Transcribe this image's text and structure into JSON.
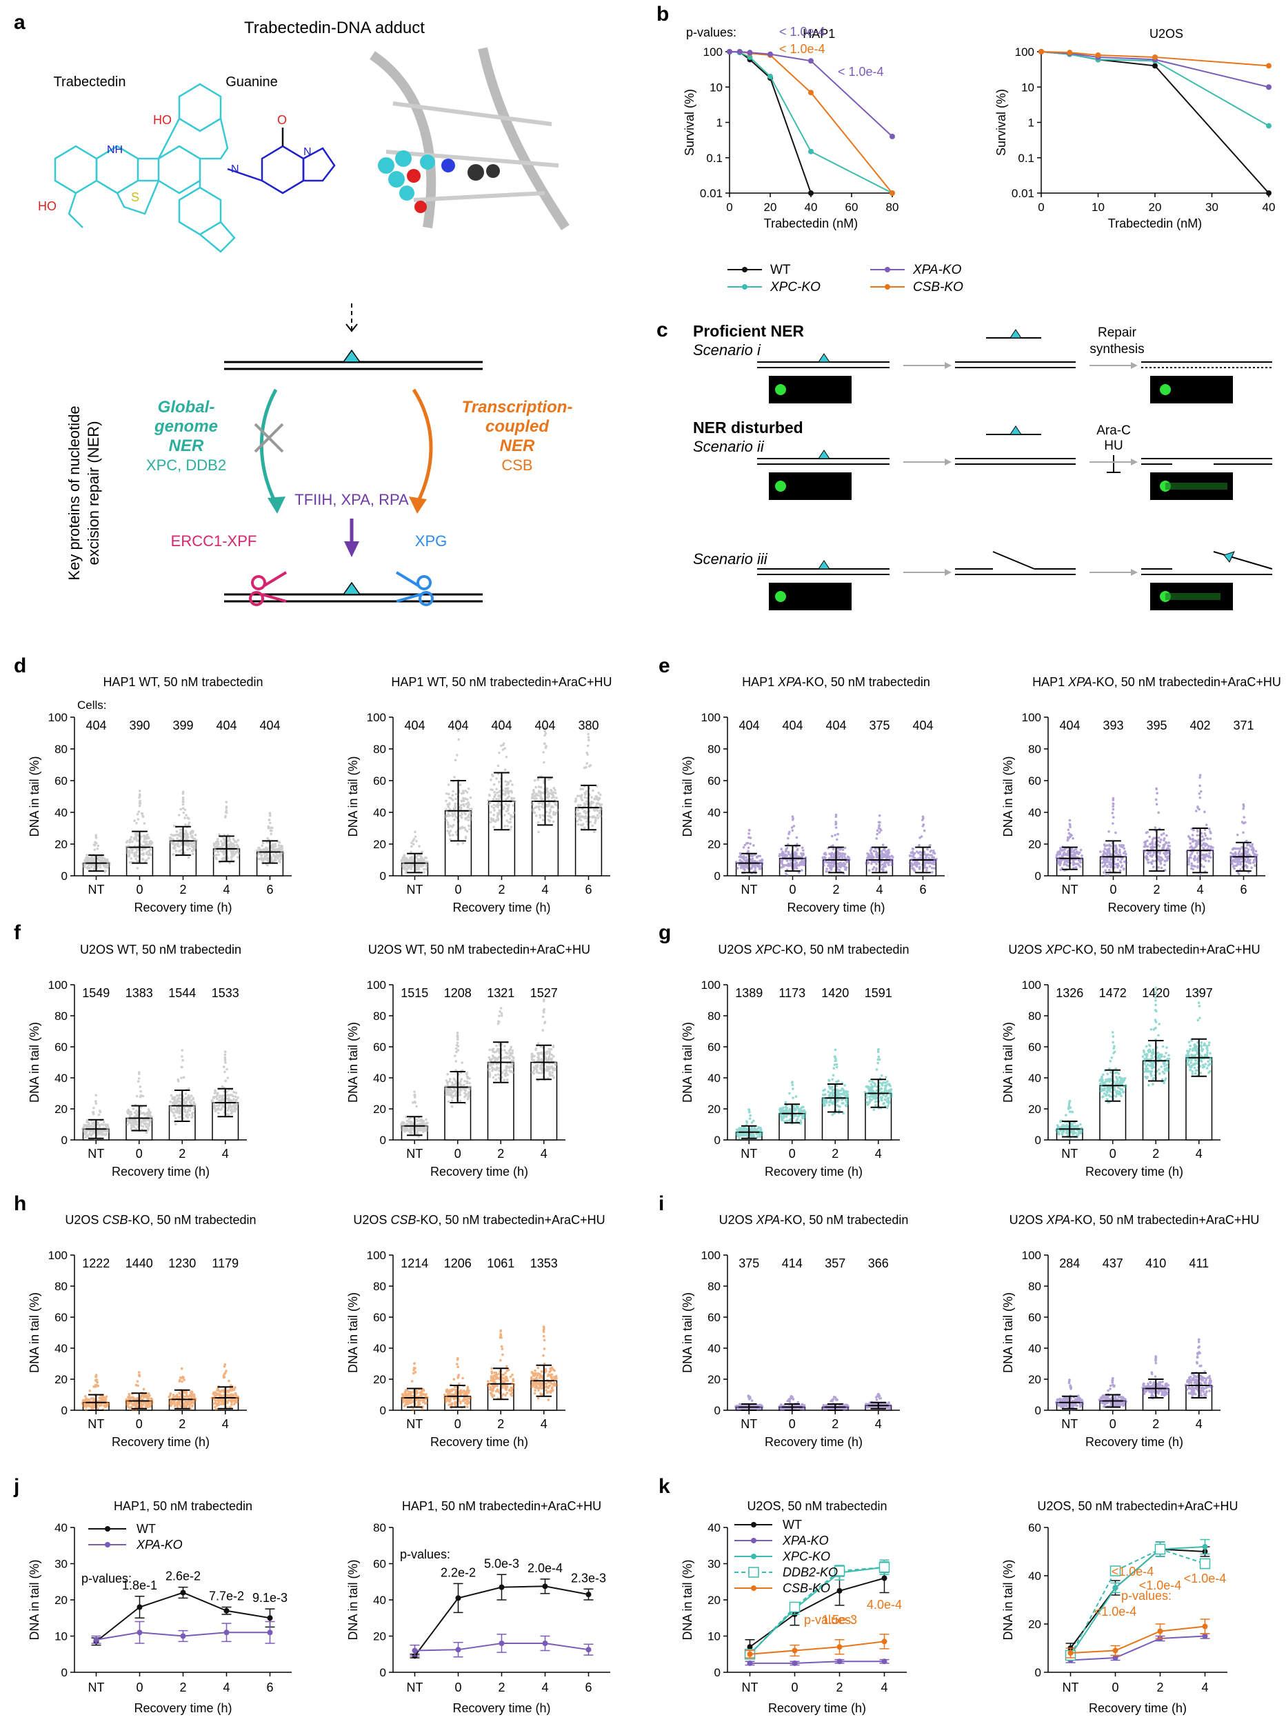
{
  "figure_label": "Figure",
  "colors": {
    "wt": "#111111",
    "xpa": "#7A5CB8",
    "xpc": "#3BBBAD",
    "csb": "#E8751A",
    "grey": "#A9A9A9",
    "ner_teal": "#2BAE9E",
    "ner_orange": "#E8751A",
    "purple": "#6E3AA7",
    "ercc": "#D6246E",
    "xpg": "#2D8BEA",
    "adduct": "#39C9D4"
  },
  "panel_a": {
    "letter": "a",
    "title": "Trabectedin-DNA adduct",
    "trabectedin_label": "Trabectedin",
    "guanine_label": "Guanine",
    "y_label_line1": "Key proteins of nucleotide",
    "y_label_line2": "excision repair (NER)",
    "gg_line1": "Global-",
    "gg_line2": "genome",
    "gg_line3": "NER",
    "gg_proteins": "XPC, DDB2",
    "tc_line1": "Transcription-",
    "tc_line2": "coupled",
    "tc_line3": "NER",
    "tc_proteins": "CSB",
    "core_proteins": "TFIIH, XPA, RPA",
    "ercc": "ERCC1-XPF",
    "xpg": "XPG"
  },
  "panel_b": {
    "letter": "b",
    "pvalues_label": "p-values:",
    "legend": [
      {
        "name": "WT",
        "key": "wt"
      },
      {
        "name": "XPA-KO",
        "key": "xpa"
      },
      {
        "name": "XPC-KO",
        "key": "xpc"
      },
      {
        "name": "CSB-KO",
        "key": "csb"
      }
    ]
  },
  "panel_c": {
    "letter": "c",
    "proficient": "Proficient NER",
    "scenario_i": "Scenario i",
    "repair": "Repair",
    "synthesis": "synthesis",
    "disturbed": "NER disturbed",
    "scenario_ii": "Scenario ii",
    "arac": "Ara-C",
    "hu": "HU",
    "scenario_iii": "Scenario iii"
  },
  "cells_label": "Cells:",
  "chart_data": [
    {
      "id": "b1",
      "type": "line",
      "title": "HAP1",
      "xlabel": "Trabectedin (nM)",
      "ylabel": "Survival (%)",
      "yscale": "log",
      "xlim": [
        0,
        80
      ],
      "xticks": [
        0,
        20,
        40,
        60,
        80
      ],
      "ylim": [
        0.01,
        100
      ],
      "yticks": [
        "0.01",
        "0.1",
        "1",
        "10",
        "100"
      ],
      "pvalues": [
        {
          "text": "< 1.0e-4",
          "key": "xpa"
        },
        {
          "text": "< 1.0e-4",
          "key": "csb"
        },
        {
          "text": "< 1.0e-4",
          "key": "xpa"
        }
      ],
      "series": [
        {
          "name": "WT",
          "key": "wt",
          "x": [
            0,
            5,
            10,
            20,
            40
          ],
          "y": [
            100,
            98,
            60,
            18,
            0.01
          ]
        },
        {
          "name": "XPC-KO",
          "key": "xpc",
          "x": [
            0,
            5,
            10,
            20,
            40,
            80
          ],
          "y": [
            100,
            95,
            70,
            20,
            0.15,
            0.01
          ]
        },
        {
          "name": "CSB-KO",
          "key": "csb",
          "x": [
            0,
            5,
            10,
            20,
            40,
            80
          ],
          "y": [
            100,
            100,
            90,
            80,
            7,
            0.01
          ]
        },
        {
          "name": "XPA-KO",
          "key": "xpa",
          "x": [
            0,
            5,
            10,
            20,
            40,
            80
          ],
          "y": [
            100,
            100,
            95,
            85,
            55,
            0.4
          ]
        }
      ]
    },
    {
      "id": "b2",
      "type": "line",
      "title": "U2OS",
      "xlabel": "Trabectedin (nM)",
      "ylabel": "Survival (%)",
      "yscale": "log",
      "xlim": [
        0,
        40
      ],
      "xticks": [
        0,
        10,
        20,
        30,
        40
      ],
      "ylim": [
        0.01,
        100
      ],
      "yticks": [
        "0.01",
        "0.1",
        "1",
        "10",
        "100"
      ],
      "series": [
        {
          "name": "WT",
          "key": "wt",
          "x": [
            0,
            5,
            10,
            20,
            40
          ],
          "y": [
            100,
            85,
            60,
            40,
            0.01
          ]
        },
        {
          "name": "XPC-KO",
          "key": "xpc",
          "x": [
            0,
            5,
            10,
            20,
            40
          ],
          "y": [
            100,
            85,
            60,
            55,
            0.8
          ]
        },
        {
          "name": "XPA-KO",
          "key": "xpa",
          "x": [
            0,
            5,
            10,
            20,
            40
          ],
          "y": [
            100,
            90,
            70,
            60,
            10
          ]
        },
        {
          "name": "CSB-KO",
          "key": "csb",
          "x": [
            0,
            5,
            10,
            20,
            40
          ],
          "y": [
            100,
            95,
            80,
            70,
            40
          ]
        }
      ]
    },
    {
      "id": "d1",
      "type": "bar",
      "letter": "d",
      "title": "HAP1 WT, 50 nM trabectedin",
      "color": "grey",
      "categories": [
        "NT",
        "0",
        "2",
        "4",
        "6"
      ],
      "values": [
        8,
        18,
        22,
        17,
        15
      ],
      "sd": [
        5,
        10,
        9,
        8,
        7
      ],
      "counts": [
        "404",
        "390",
        "399",
        "404",
        "404"
      ],
      "show_cells_label": true,
      "ylim": [
        0,
        100
      ],
      "xlabel": "Recovery time (h)",
      "ylabel": "DNA in tail (%)"
    },
    {
      "id": "d2",
      "type": "bar",
      "title": "HAP1 WT, 50 nM trabectedin+AraC+HU",
      "color": "grey",
      "categories": [
        "NT",
        "0",
        "2",
        "4",
        "6"
      ],
      "values": [
        8,
        41,
        47,
        47,
        43
      ],
      "sd": [
        6,
        19,
        18,
        15,
        14
      ],
      "counts": [
        "404",
        "404",
        "404",
        "404",
        "380"
      ],
      "ylim": [
        0,
        100
      ],
      "xlabel": "Recovery time (h)",
      "ylabel": "DNA in tail (%)"
    },
    {
      "id": "e1",
      "type": "bar",
      "letter": "e",
      "title_parts": [
        "HAP1 ",
        "XPA",
        "-KO, 50 nM trabectedin"
      ],
      "color": "xpa",
      "categories": [
        "NT",
        "0",
        "2",
        "4",
        "6"
      ],
      "values": [
        8,
        11,
        10,
        10,
        10
      ],
      "sd": [
        6,
        8,
        8,
        8,
        8
      ],
      "counts": [
        "404",
        "404",
        "404",
        "375",
        "404"
      ],
      "ylim": [
        0,
        100
      ],
      "xlabel": "Recovery time (h)",
      "ylabel": "DNA in tail (%)"
    },
    {
      "id": "e2",
      "type": "bar",
      "title_parts": [
        "HAP1 ",
        "XPA",
        "-KO, 50 nM trabectedin+AraC+HU"
      ],
      "color": "xpa",
      "categories": [
        "NT",
        "0",
        "2",
        "4",
        "6"
      ],
      "values": [
        11,
        12,
        16,
        16,
        12
      ],
      "sd": [
        7,
        10,
        13,
        14,
        9
      ],
      "counts": [
        "404",
        "393",
        "395",
        "402",
        "371"
      ],
      "ylim": [
        0,
        100
      ],
      "xlabel": "Recovery time (h)",
      "ylabel": "DNA in tail (%)"
    },
    {
      "id": "f1",
      "type": "bar",
      "letter": "f",
      "title": "U2OS WT, 50 nM trabectedin",
      "color": "grey",
      "categories": [
        "NT",
        "0",
        "2",
        "4"
      ],
      "values": [
        7,
        14,
        22,
        24
      ],
      "sd": [
        6,
        8,
        10,
        9
      ],
      "counts": [
        "1549",
        "1383",
        "1544",
        "1533"
      ],
      "ylim": [
        0,
        100
      ],
      "xlabel": "Recovery time (h)",
      "ylabel": "DNA in tail (%)"
    },
    {
      "id": "f2",
      "type": "bar",
      "title": "U2OS WT, 50 nM trabectedin+AraC+HU",
      "color": "grey",
      "categories": [
        "NT",
        "0",
        "2",
        "4"
      ],
      "values": [
        9,
        34,
        50,
        50
      ],
      "sd": [
        6,
        10,
        13,
        11
      ],
      "counts": [
        "1515",
        "1208",
        "1321",
        "1527"
      ],
      "ylim": [
        0,
        100
      ],
      "xlabel": "Recovery time (h)",
      "ylabel": "DNA in tail (%)"
    },
    {
      "id": "g1",
      "type": "bar",
      "letter": "g",
      "title_parts": [
        "U2OS ",
        "XPC",
        "-KO, 50 nM trabectedin"
      ],
      "color": "xpc",
      "categories": [
        "NT",
        "0",
        "2",
        "4"
      ],
      "values": [
        5,
        17,
        27,
        30
      ],
      "sd": [
        4,
        6,
        9,
        9
      ],
      "counts": [
        "1389",
        "1173",
        "1420",
        "1591"
      ],
      "ylim": [
        0,
        100
      ],
      "xlabel": "Recovery time (h)",
      "ylabel": "DNA in tail (%)"
    },
    {
      "id": "g2",
      "type": "bar",
      "title_parts": [
        "U2OS ",
        "XPC",
        "-KO, 50 nM trabectedin+AraC+HU"
      ],
      "color": "xpc",
      "categories": [
        "NT",
        "0",
        "2",
        "4"
      ],
      "values": [
        7,
        35,
        51,
        53
      ],
      "sd": [
        5,
        10,
        13,
        12
      ],
      "counts": [
        "1326",
        "1472",
        "1420",
        "1397"
      ],
      "ylim": [
        0,
        100
      ],
      "xlabel": "Recovery time (h)",
      "ylabel": "DNA in tail (%)"
    },
    {
      "id": "h1",
      "type": "bar",
      "letter": "h",
      "title_parts": [
        "U2OS ",
        "CSB",
        "-KO, 50 nM trabectedin"
      ],
      "color": "csb",
      "categories": [
        "NT",
        "0",
        "2",
        "4"
      ],
      "values": [
        5,
        6,
        7,
        8
      ],
      "sd": [
        5,
        5,
        6,
        7
      ],
      "counts": [
        "1222",
        "1440",
        "1230",
        "1179"
      ],
      "ylim": [
        0,
        100
      ],
      "xlabel": "Recovery time (h)",
      "ylabel": "DNA in tail (%)"
    },
    {
      "id": "h2",
      "type": "bar",
      "title_parts": [
        "U2OS ",
        "CSB",
        "-KO, 50 nM trabectedin+AraC+HU"
      ],
      "color": "csb",
      "categories": [
        "NT",
        "0",
        "2",
        "4"
      ],
      "values": [
        8,
        9,
        17,
        19
      ],
      "sd": [
        6,
        7,
        10,
        10
      ],
      "counts": [
        "1214",
        "1206",
        "1061",
        "1353"
      ],
      "ylim": [
        0,
        100
      ],
      "xlabel": "Recovery time (h)",
      "ylabel": "DNA in tail (%)"
    },
    {
      "id": "i1",
      "type": "bar",
      "letter": "i",
      "title_parts": [
        "U2OS ",
        "XPA",
        "-KO, 50 nM trabectedin"
      ],
      "color": "xpa",
      "categories": [
        "NT",
        "0",
        "2",
        "4"
      ],
      "values": [
        2,
        2,
        2,
        3
      ],
      "sd": [
        2,
        2,
        2,
        2
      ],
      "counts": [
        "375",
        "414",
        "357",
        "366"
      ],
      "ylim": [
        0,
        100
      ],
      "xlabel": "Recovery time (h)",
      "ylabel": "DNA in tail (%)"
    },
    {
      "id": "i2",
      "type": "bar",
      "title_parts": [
        "U2OS ",
        "XPA",
        "-KO, 50 nM trabectedin+AraC+HU"
      ],
      "color": "xpa",
      "categories": [
        "NT",
        "0",
        "2",
        "4"
      ],
      "values": [
        5,
        6,
        14,
        16
      ],
      "sd": [
        4,
        4,
        6,
        8
      ],
      "counts": [
        "284",
        "437",
        "410",
        "411"
      ],
      "ylim": [
        0,
        100
      ],
      "xlabel": "Recovery time (h)",
      "ylabel": "DNA in tail (%)"
    },
    {
      "id": "j1",
      "type": "line",
      "letter": "j",
      "title": "HAP1, 50 nM trabectedin",
      "categories": [
        "NT",
        "0",
        "2",
        "4",
        "6"
      ],
      "ylim": [
        0,
        40
      ],
      "yticks": [
        0,
        10,
        20,
        30,
        40
      ],
      "xlabel": "Recovery time (h)",
      "ylabel": "DNA in tail (%)",
      "pvalues_label": "p-values:",
      "pvalues": [
        "1.8e-1",
        "2.6e-2",
        "7.7e-2",
        "9.1e-3"
      ],
      "legend": [
        {
          "name": "WT",
          "key": "wt"
        },
        {
          "name": "XPA-KO",
          "key": "xpa"
        }
      ],
      "series": [
        {
          "name": "WT",
          "key": "wt",
          "values": [
            8.5,
            18,
            22,
            17,
            15
          ],
          "err": [
            1,
            3,
            1.5,
            1,
            2.5
          ]
        },
        {
          "name": "XPA-KO",
          "key": "xpa",
          "values": [
            9,
            11,
            10,
            11,
            11
          ],
          "err": [
            1,
            3,
            1.5,
            2.5,
            3
          ]
        }
      ]
    },
    {
      "id": "j2",
      "type": "line",
      "title": "HAP1, 50 nM trabectedin+AraC+HU",
      "categories": [
        "NT",
        "0",
        "2",
        "4",
        "6"
      ],
      "ylim": [
        0,
        80
      ],
      "yticks": [
        0,
        20,
        40,
        60,
        80
      ],
      "xlabel": "Recovery time (h)",
      "ylabel": "DNA in tail (%)",
      "pvalues_label": "p-values:",
      "pvalues": [
        "2.2e-2",
        "5.0e-3",
        "2.0e-4",
        "2.3e-3"
      ],
      "series": [
        {
          "name": "WT",
          "key": "wt",
          "values": [
            9,
            41,
            47,
            47.5,
            43
          ],
          "err": [
            1,
            8,
            7,
            4,
            3
          ]
        },
        {
          "name": "XPA-KO",
          "key": "xpa",
          "values": [
            12,
            12.5,
            16,
            16,
            12.5
          ],
          "err": [
            3,
            4,
            5,
            4,
            3
          ]
        }
      ]
    },
    {
      "id": "k1",
      "type": "line",
      "letter": "k",
      "title": "U2OS, 50 nM trabectedin",
      "categories": [
        "NT",
        "0",
        "2",
        "4"
      ],
      "ylim": [
        0,
        40
      ],
      "yticks": [
        0,
        10,
        20,
        30,
        40
      ],
      "xlabel": "Recovery time (h)",
      "ylabel": "DNA in tail (%)",
      "pvalues_label": "p-values:",
      "pvalues": [
        "1.5e-3",
        "4.0e-4"
      ],
      "legend": [
        {
          "name": "WT",
          "key": "wt"
        },
        {
          "name": "XPA-KO",
          "key": "xpa"
        },
        {
          "name": "XPC-KO",
          "key": "xpc"
        },
        {
          "name": "DDB2-KO",
          "key": "xpc",
          "dashed": true
        },
        {
          "name": "CSB-KO",
          "key": "csb"
        }
      ],
      "series": [
        {
          "name": "WT",
          "key": "wt",
          "values": [
            7,
            16,
            22.5,
            26
          ],
          "err": [
            2,
            3,
            4,
            4
          ]
        },
        {
          "name": "XPA-KO",
          "key": "xpa",
          "values": [
            2.5,
            2.5,
            3,
            3
          ],
          "err": [
            0.5,
            0.5,
            0.5,
            0.5
          ]
        },
        {
          "name": "XPC-KO",
          "key": "xpc",
          "values": [
            5,
            17.5,
            27.5,
            29
          ],
          "err": [
            1,
            1.5,
            2,
            2
          ]
        },
        {
          "name": "DDB2-KO",
          "key": "xpc",
          "dashed": true,
          "square": true,
          "values": [
            5,
            18,
            28,
            29
          ],
          "err": [
            1,
            1,
            1.5,
            1.5
          ]
        },
        {
          "name": "CSB-KO",
          "key": "csb",
          "values": [
            5,
            6,
            7,
            8.5
          ],
          "err": [
            1,
            1.5,
            2,
            2
          ]
        }
      ]
    },
    {
      "id": "k2",
      "type": "line",
      "title": "U2OS, 50 nM trabectedin+AraC+HU",
      "categories": [
        "NT",
        "0",
        "2",
        "4"
      ],
      "ylim": [
        0,
        60
      ],
      "yticks": [
        0,
        20,
        40,
        60
      ],
      "xlabel": "Recovery time (h)",
      "ylabel": "DNA in tail (%)",
      "pvalues_label": "p-values:",
      "pvalues": [
        "<1.0e-4",
        "<1.0e-4",
        "<1.0e-4",
        "<1.0e-4"
      ],
      "series": [
        {
          "name": "WT",
          "key": "wt",
          "values": [
            10,
            35,
            51,
            50
          ],
          "err": [
            2,
            3,
            3,
            2
          ]
        },
        {
          "name": "XPA-KO",
          "key": "xpa",
          "values": [
            5,
            6,
            14,
            15
          ],
          "err": [
            1,
            1,
            1,
            1
          ]
        },
        {
          "name": "XPC-KO",
          "key": "xpc",
          "values": [
            7,
            35,
            51,
            52
          ],
          "err": [
            1,
            2,
            3,
            3
          ]
        },
        {
          "name": "DDB2-KO",
          "key": "xpc",
          "dashed": true,
          "square": true,
          "values": [
            7,
            42,
            51,
            45
          ],
          "err": [
            1,
            1,
            2,
            2
          ]
        },
        {
          "name": "CSB-KO",
          "key": "csb",
          "values": [
            8,
            9,
            17,
            19
          ],
          "err": [
            2,
            2,
            3,
            3
          ]
        }
      ]
    }
  ]
}
